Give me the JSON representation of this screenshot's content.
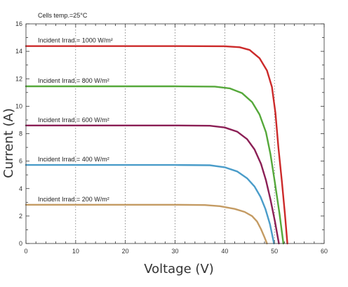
{
  "chart_data": {
    "type": "line",
    "title": "",
    "annotation": "Cells temp.=25°C",
    "xlabel": "Voltage (V)",
    "ylabel": "Current (A)",
    "xlim": [
      0,
      60
    ],
    "ylim": [
      0,
      16
    ],
    "xticks": [
      0,
      10,
      20,
      30,
      40,
      50,
      60
    ],
    "yticks": [
      0,
      2,
      4,
      6,
      8,
      10,
      12,
      14,
      16
    ],
    "grid": "vertical dotted",
    "series": [
      {
        "name": "Incident Irrad.= 1000 W/m²",
        "color": "#cc2a2a",
        "points": [
          [
            0,
            14.38
          ],
          [
            10,
            14.38
          ],
          [
            20,
            14.38
          ],
          [
            30,
            14.38
          ],
          [
            40,
            14.37
          ],
          [
            43,
            14.3
          ],
          [
            45,
            14.1
          ],
          [
            47,
            13.5
          ],
          [
            48.5,
            12.6
          ],
          [
            49.5,
            11.4
          ],
          [
            50.2,
            9.5
          ],
          [
            50.8,
            7.0
          ],
          [
            51.5,
            4.5
          ],
          [
            52.1,
            2.2
          ],
          [
            52.6,
            0
          ]
        ]
      },
      {
        "name": "Incident Irrad.= 800 W/m²",
        "color": "#55a83a",
        "points": [
          [
            0,
            11.45
          ],
          [
            10,
            11.45
          ],
          [
            20,
            11.45
          ],
          [
            30,
            11.45
          ],
          [
            38,
            11.43
          ],
          [
            41,
            11.3
          ],
          [
            43.5,
            10.95
          ],
          [
            45.5,
            10.3
          ],
          [
            47,
            9.4
          ],
          [
            48.3,
            8.1
          ],
          [
            49.2,
            6.5
          ],
          [
            50.1,
            4.4
          ],
          [
            51,
            2.2
          ],
          [
            51.8,
            0
          ]
        ]
      },
      {
        "name": "Incident Irrad.= 600 W/m²",
        "color": "#8b1f55",
        "points": [
          [
            0,
            8.6
          ],
          [
            10,
            8.6
          ],
          [
            20,
            8.6
          ],
          [
            30,
            8.6
          ],
          [
            37,
            8.58
          ],
          [
            40,
            8.45
          ],
          [
            42.5,
            8.15
          ],
          [
            44.5,
            7.6
          ],
          [
            46,
            6.85
          ],
          [
            47.3,
            5.8
          ],
          [
            48.3,
            4.6
          ],
          [
            49.2,
            3.2
          ],
          [
            50.1,
            1.6
          ],
          [
            50.9,
            0
          ]
        ]
      },
      {
        "name": "Incident Irrad.= 400 W/m²",
        "color": "#4a9cc9",
        "points": [
          [
            0,
            5.72
          ],
          [
            10,
            5.72
          ],
          [
            20,
            5.72
          ],
          [
            30,
            5.72
          ],
          [
            37,
            5.7
          ],
          [
            40,
            5.55
          ],
          [
            42.5,
            5.25
          ],
          [
            44.5,
            4.75
          ],
          [
            46,
            4.15
          ],
          [
            47.2,
            3.4
          ],
          [
            48.2,
            2.5
          ],
          [
            49.1,
            1.4
          ],
          [
            49.9,
            0
          ]
        ]
      },
      {
        "name": "Incident Irrad.= 200 W/m²",
        "color": "#c49b63",
        "points": [
          [
            0,
            2.82
          ],
          [
            10,
            2.82
          ],
          [
            20,
            2.82
          ],
          [
            30,
            2.82
          ],
          [
            36,
            2.8
          ],
          [
            39,
            2.72
          ],
          [
            42,
            2.52
          ],
          [
            44,
            2.3
          ],
          [
            45.5,
            2.0
          ],
          [
            46.5,
            1.6
          ],
          [
            47.3,
            1.05
          ],
          [
            48,
            0.45
          ],
          [
            48.5,
            0
          ]
        ]
      }
    ]
  }
}
